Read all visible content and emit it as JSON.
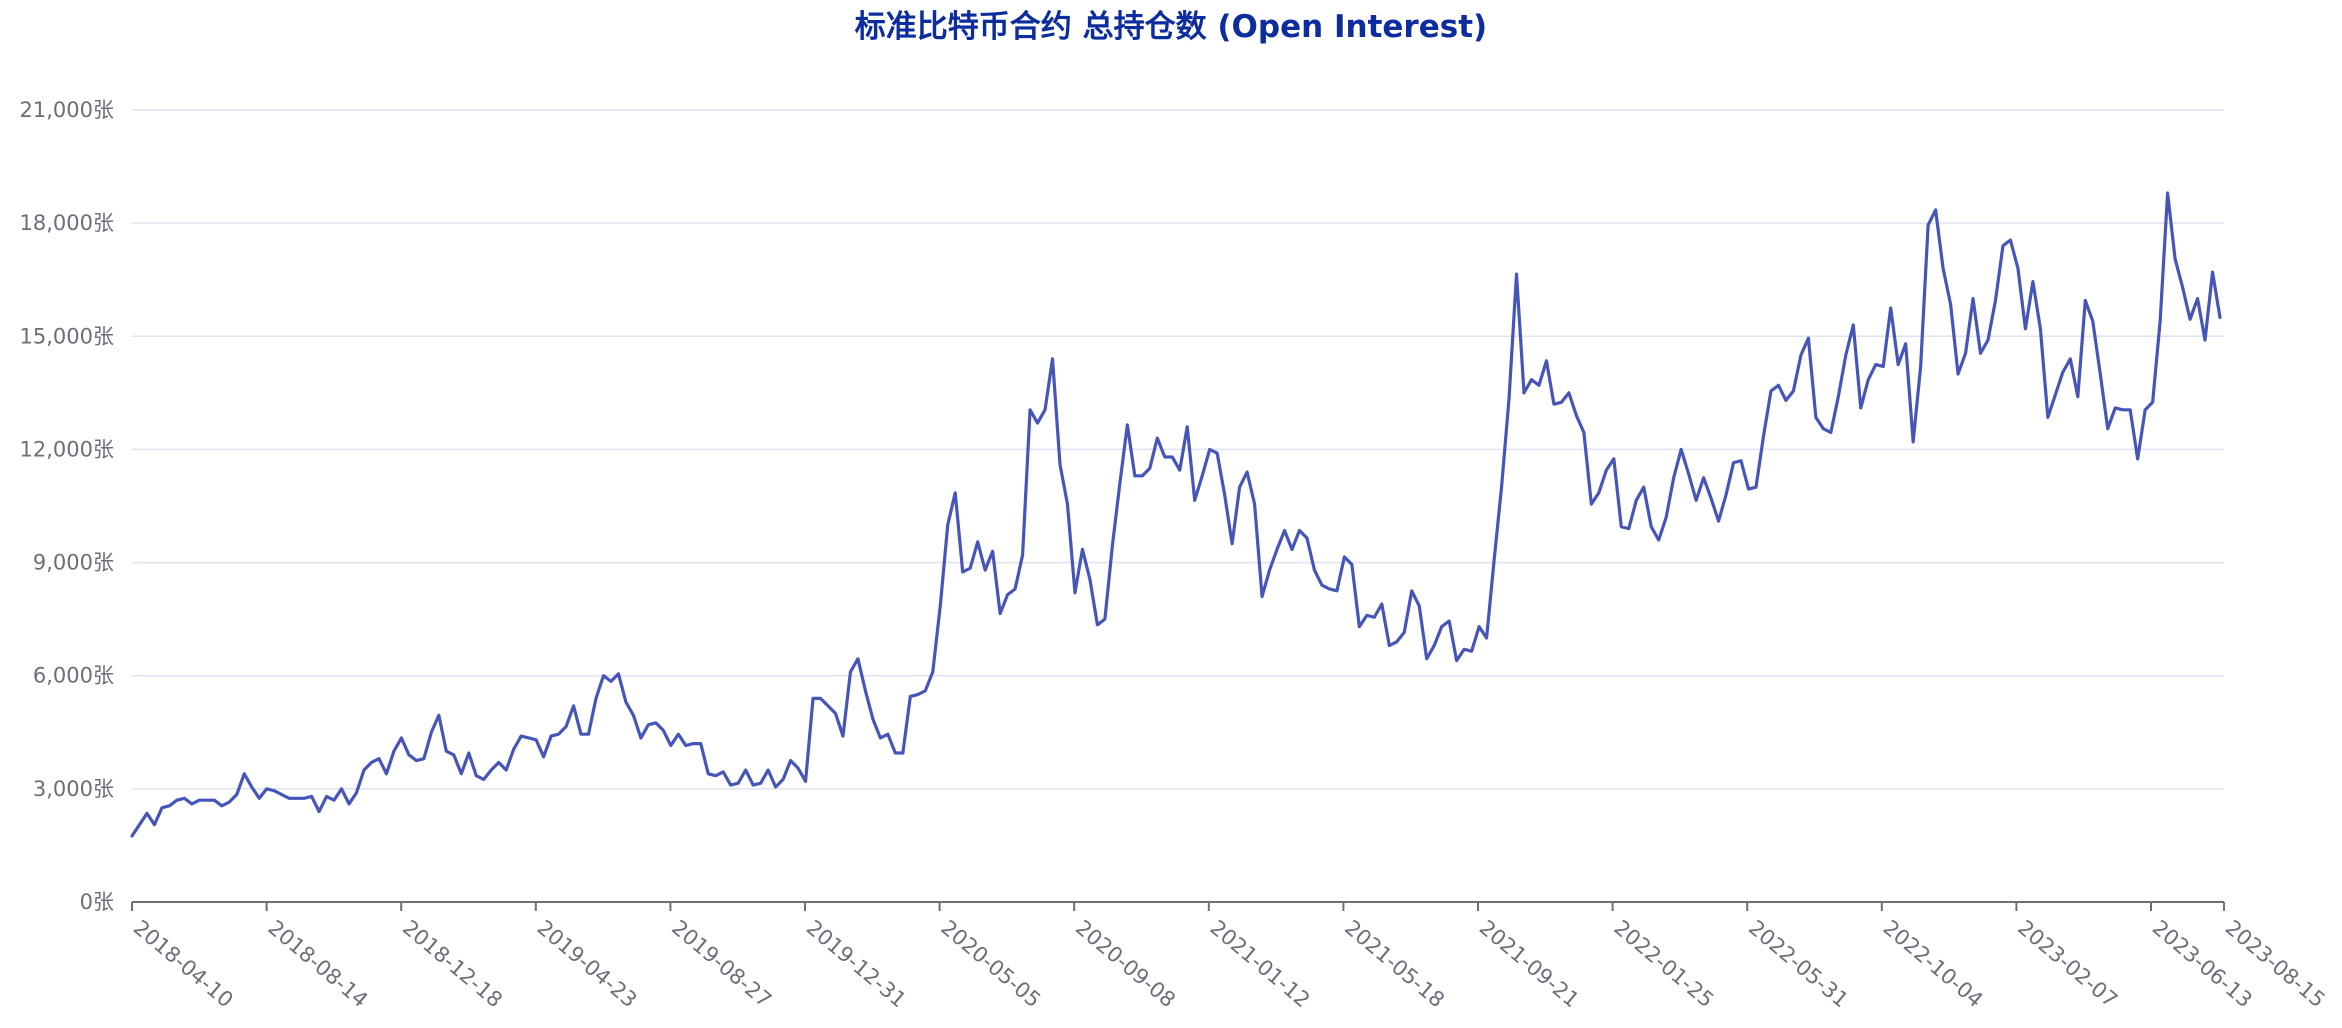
{
  "chart_data": {
    "type": "line",
    "title": "标准比特币合约 总持仓数 (Open Interest)",
    "xlabel": "",
    "ylabel": "",
    "ylim": [
      0,
      21000
    ],
    "yticks": [
      {
        "value": 0,
        "label": "0张"
      },
      {
        "value": 3000,
        "label": "3,000张"
      },
      {
        "value": 6000,
        "label": "6,000张"
      },
      {
        "value": 9000,
        "label": "9,000张"
      },
      {
        "value": 12000,
        "label": "12,000张"
      },
      {
        "value": 15000,
        "label": "15,000张"
      },
      {
        "value": 18000,
        "label": "18,000张"
      },
      {
        "value": 21000,
        "label": "21,000张"
      }
    ],
    "xticks": [
      "2018-04-10",
      "2018-08-14",
      "2018-12-18",
      "2019-04-23",
      "2019-08-27",
      "2019-12-31",
      "2020-05-05",
      "2020-09-08",
      "2021-01-12",
      "2021-05-18",
      "2021-09-21",
      "2022-01-25",
      "2022-05-31",
      "2022-10-04",
      "2023-02-07",
      "2023-06-13",
      "2023-08-15"
    ],
    "grid": true,
    "legend": "none",
    "color": "#4556b8",
    "series": [
      {
        "values": [
          1750,
          2050,
          2350,
          2050,
          2500,
          2550,
          2700,
          2750,
          2600,
          2700,
          2700,
          2700,
          2550,
          2650,
          2850,
          3400,
          3050,
          2750,
          3000,
          2950,
          2850,
          2750,
          2750,
          2750,
          2800,
          2400,
          2800,
          2700,
          3000,
          2600,
          2900,
          3500,
          3700,
          3800,
          3400,
          4000,
          4350,
          3900,
          3750,
          3800,
          4500,
          4950,
          4000,
          3900,
          3400,
          3950,
          3350,
          3250,
          3500,
          3700,
          3500,
          4050,
          4400,
          4350,
          4300,
          3850,
          4400,
          4450,
          4650,
          5200,
          4450,
          4450,
          5400,
          6000,
          5850,
          6050,
          5300,
          4950,
          4350,
          4700,
          4750,
          4550,
          4150,
          4450,
          4150,
          4200,
          4200,
          3400,
          3350,
          3450,
          3100,
          3150,
          3500,
          3100,
          3150,
          3500,
          3050,
          3250,
          3750,
          3550,
          3200,
          5400,
          5400,
          5200,
          5000,
          4400,
          6100,
          6450,
          5600,
          4850,
          4350,
          4450,
          3950,
          3950,
          5450,
          5500,
          5600,
          6100,
          7850,
          10000,
          10850,
          8750,
          8850,
          9550,
          8800,
          9300,
          7650,
          8150,
          8300,
          9200,
          13050,
          12700,
          13050,
          14400,
          11600,
          10550,
          8200,
          9350,
          8550,
          7350,
          7500,
          9450,
          11100,
          12650,
          11300,
          11300,
          11500,
          12300,
          11800,
          11800,
          11450,
          12600,
          10650,
          11300,
          12000,
          11900,
          10800,
          9500,
          11000,
          11400,
          10550,
          8100,
          8800,
          9350,
          9850,
          9350,
          9850,
          9650,
          8800,
          8400,
          8300,
          8250,
          9150,
          8950,
          7300,
          7600,
          7550,
          7900,
          6800,
          6900,
          7150,
          8250,
          7850,
          6450,
          6800,
          7300,
          7450,
          6400,
          6700,
          6650,
          7300,
          7000,
          9050,
          11000,
          13350,
          16650,
          13500,
          13850,
          13700,
          14350,
          13200,
          13250,
          13500,
          12900,
          12450,
          10550,
          10850,
          11450,
          11750,
          9950,
          9900,
          10650,
          11000,
          9950,
          9600,
          10200,
          11250,
          12000,
          11350,
          10650,
          11250,
          10700,
          10100,
          10800,
          11650,
          11700,
          10950,
          11000,
          12350,
          13550,
          13700,
          13300,
          13550,
          14500,
          14950,
          12850,
          12550,
          12450,
          13400,
          14500,
          15300,
          13100,
          13850,
          14250,
          14200,
          15750,
          14250,
          14800,
          12200,
          14200,
          17950,
          18350,
          16800,
          15850,
          14000,
          14550,
          16000,
          14550,
          14900,
          15950,
          17400,
          17550,
          16800,
          15200,
          16450,
          15200,
          12850,
          13450,
          14050,
          14400,
          13400,
          15950,
          15400,
          14000,
          12550,
          13100,
          13050,
          13050,
          11750,
          13050,
          13250,
          15400,
          18800,
          17050,
          16300,
          15450,
          16000,
          14900,
          16700,
          15500
        ]
      }
    ]
  }
}
